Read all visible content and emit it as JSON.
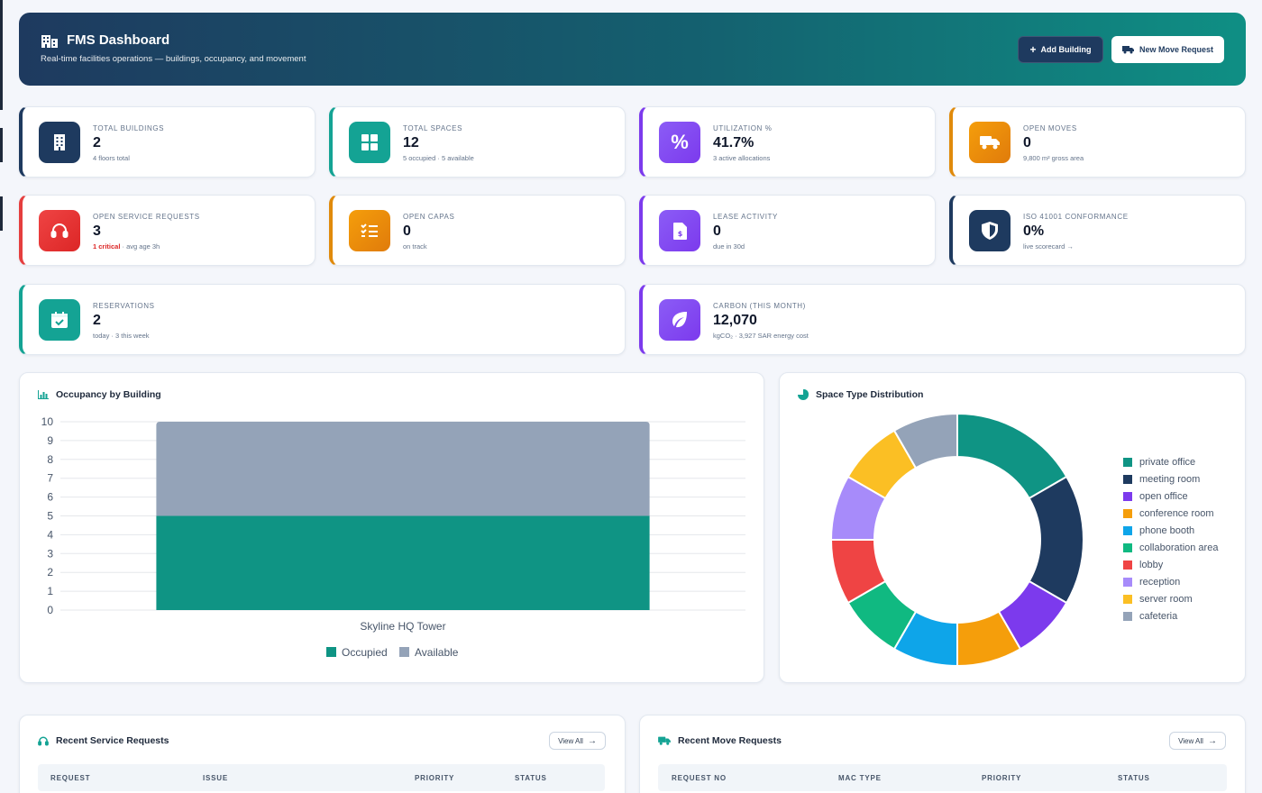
{
  "header": {
    "title": "FMS Dashboard",
    "subtitle": "Real-time facilities operations — buildings, occupancy, and movement",
    "add_building_label": "Add Building",
    "new_move_label": "New Move Request"
  },
  "kpis": {
    "total_buildings": {
      "label": "TOTAL BUILDINGS",
      "value": "2",
      "sub": "4 floors total",
      "icon": "building-icon",
      "color": "#1e3a5f"
    },
    "total_spaces": {
      "label": "TOTAL SPACES",
      "value": "12",
      "sub": "5 occupied · 5 available",
      "icon": "grid-icon",
      "color": "#14a394"
    },
    "utilization": {
      "label": "UTILIZATION %",
      "value": "41.7%",
      "sub": "3 active allocations",
      "icon": "percent-icon",
      "color": "#7c3aed"
    },
    "open_moves": {
      "label": "OPEN MOVES",
      "value": "0",
      "sub": "9,800 m² gross area",
      "icon": "truck-icon",
      "color": "#e08a0b"
    },
    "open_service_requests": {
      "label": "OPEN SERVICE REQUESTS",
      "value": "3",
      "sub_critical": "1 critical",
      "sub_rest": " · avg age 3h",
      "icon": "headset-icon",
      "color": "#e53e3e"
    },
    "open_capas": {
      "label": "OPEN CAPAS",
      "value": "0",
      "sub": "on track",
      "icon": "checklist-icon",
      "color": "#e08a0b"
    },
    "lease_activity": {
      "label": "LEASE ACTIVITY",
      "value": "0",
      "sub": "due in 30d",
      "icon": "invoice-icon",
      "color": "#7c3aed"
    },
    "iso_conformance": {
      "label": "ISO 41001 CONFORMANCE",
      "value": "0%",
      "sub": "live scorecard →",
      "icon": "shield-icon",
      "color": "#1e3a5f"
    },
    "reservations": {
      "label": "RESERVATIONS",
      "value": "2",
      "sub": "today · 3 this week",
      "icon": "calendar-check-icon",
      "color": "#14a394"
    },
    "carbon": {
      "label": "CARBON (THIS MONTH)",
      "value": "12,070",
      "sub": "kgCO₂ · 3,927 SAR energy cost",
      "icon": "leaf-icon",
      "color": "#7c3aed"
    }
  },
  "occupancy_panel": {
    "title": "Occupancy by Building",
    "icon": "bar-chart-icon"
  },
  "space_panel": {
    "title": "Space Type Distribution",
    "icon": "pie-chart-icon"
  },
  "service_panel": {
    "title": "Recent Service Requests",
    "icon": "headset-icon",
    "view_all": "View All",
    "columns": [
      "REQUEST",
      "ISSUE",
      "PRIORITY",
      "STATUS"
    ]
  },
  "move_panel": {
    "title": "Recent Move Requests",
    "icon": "truck-icon",
    "view_all": "View All",
    "columns": [
      "REQUEST NO",
      "MAC TYPE",
      "PRIORITY",
      "STATUS"
    ]
  },
  "chart_data": [
    {
      "type": "bar",
      "stacked": true,
      "categories": [
        "Skyline HQ Tower"
      ],
      "series": [
        {
          "name": "Occupied",
          "values": [
            5
          ],
          "color": "#0f9484"
        },
        {
          "name": "Available",
          "values": [
            5
          ],
          "color": "#94a3b8"
        }
      ],
      "y_ticks": [
        0,
        1,
        2,
        3,
        4,
        5,
        6,
        7,
        8,
        9,
        10
      ],
      "ylim": [
        0,
        10
      ],
      "grid": true,
      "legend": "bottom"
    },
    {
      "type": "pie",
      "donut": true,
      "labels": [
        "private office",
        "meeting room",
        "open office",
        "conference room",
        "phone booth",
        "collaboration area",
        "lobby",
        "reception",
        "server room",
        "cafeteria"
      ],
      "values": [
        2,
        2,
        1,
        1,
        1,
        1,
        1,
        1,
        1,
        1
      ],
      "colors": [
        "#0f9484",
        "#1e3a5f",
        "#7c3aed",
        "#f59e0b",
        "#0ea5e9",
        "#10b981",
        "#ef4444",
        "#a78bfa",
        "#fbbf24",
        "#94a3b8"
      ],
      "legend": "right"
    }
  ]
}
